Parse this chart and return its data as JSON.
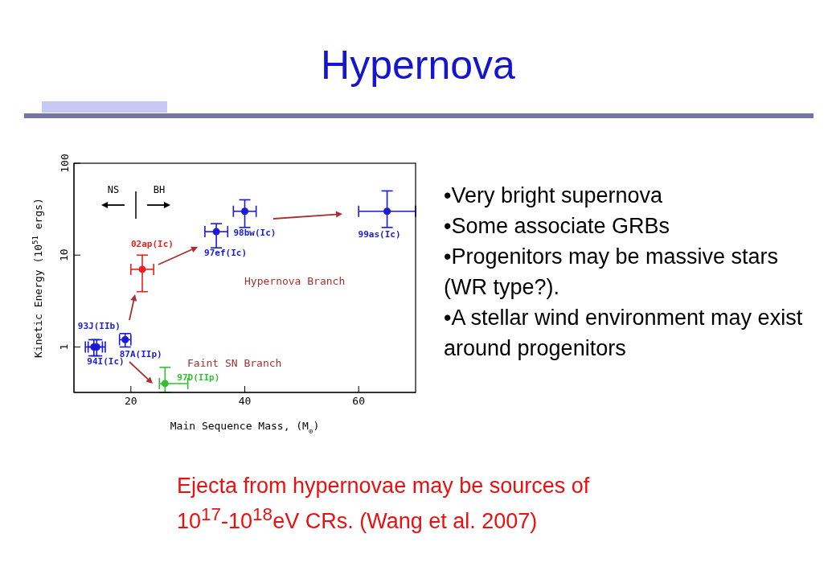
{
  "chart_data": {
    "type": "scatter",
    "title": "Hypernova",
    "xlabel": "Main Sequence Mass, (M$_{⊙}$)",
    "ylabel": "Kinetic Energy (10$^{51}$ ergs)",
    "log": "y",
    "marker": "circle",
    "xlim": [
      10,
      70
    ],
    "xticks": [
      20,
      40,
      60
    ],
    "ylim": [
      0.32,
      100
    ],
    "yticks": [
      1,
      10,
      100
    ],
    "series": [
      {
        "color": "#1a1ad8",
        "x": [
          13.5,
          14,
          19,
          35,
          40,
          65
        ],
        "values": [
          1,
          1,
          1.2,
          18,
          30,
          30
        ],
        "errors": [
          [
            0.8,
            1.2
          ],
          [
            0.8,
            1.2
          ],
          [
            1,
            1.4
          ],
          [
            12,
            22
          ],
          [
            20,
            40
          ],
          [
            20,
            50
          ]
        ],
        "xerrors": [
          [
            12,
            15
          ],
          [
            12.5,
            15.5
          ],
          [
            18,
            20
          ],
          [
            33,
            37
          ],
          [
            38,
            42
          ],
          [
            60,
            70
          ]
        ]
      },
      {
        "color": "#e82020",
        "x": [
          22
        ],
        "values": [
          7
        ],
        "errors": [
          [
            4,
            10
          ]
        ],
        "xerrors": [
          [
            20,
            24
          ]
        ]
      },
      {
        "color": "#30c030",
        "x": [
          26
        ],
        "values": [
          0.4
        ],
        "errors": [
          [
            0.32,
            0.6
          ]
        ],
        "xerrors": [
          [
            25,
            30
          ]
        ]
      }
    ],
    "annotations": [
      {
        "text": "93J(IIb)",
        "x": 13.5,
        "y": 1
      },
      {
        "text": "94I(Ic)",
        "x": 14,
        "y": 1
      },
      {
        "text": "87A(IIp)",
        "x": 19,
        "y": 1.2
      },
      {
        "text": "97D(IIp)",
        "x": 26,
        "y": 0.4
      },
      {
        "text": "02ap(Ic)",
        "x": 22,
        "y": 7
      },
      {
        "text": "97ef(Ic)",
        "x": 35,
        "y": 18
      },
      {
        "text": "98bw(Ic)",
        "x": 40,
        "y": 30
      },
      {
        "text": "99as(Ic)",
        "x": 65,
        "y": 30
      },
      "NS",
      "BH",
      "Hypernova Branch",
      "Faint SN Branch",
      "•Very bright supernova",
      "•Some associate GRBs",
      "•Progenitors may be massive stars (WR type?).",
      "•A stellar wind environment may exist around progenitors",
      "Ejecta from hypernovae may be sources of\n 10$^{17}$-10$^{18}$eV CRs. (Wang et al. 2007)"
    ]
  }
}
